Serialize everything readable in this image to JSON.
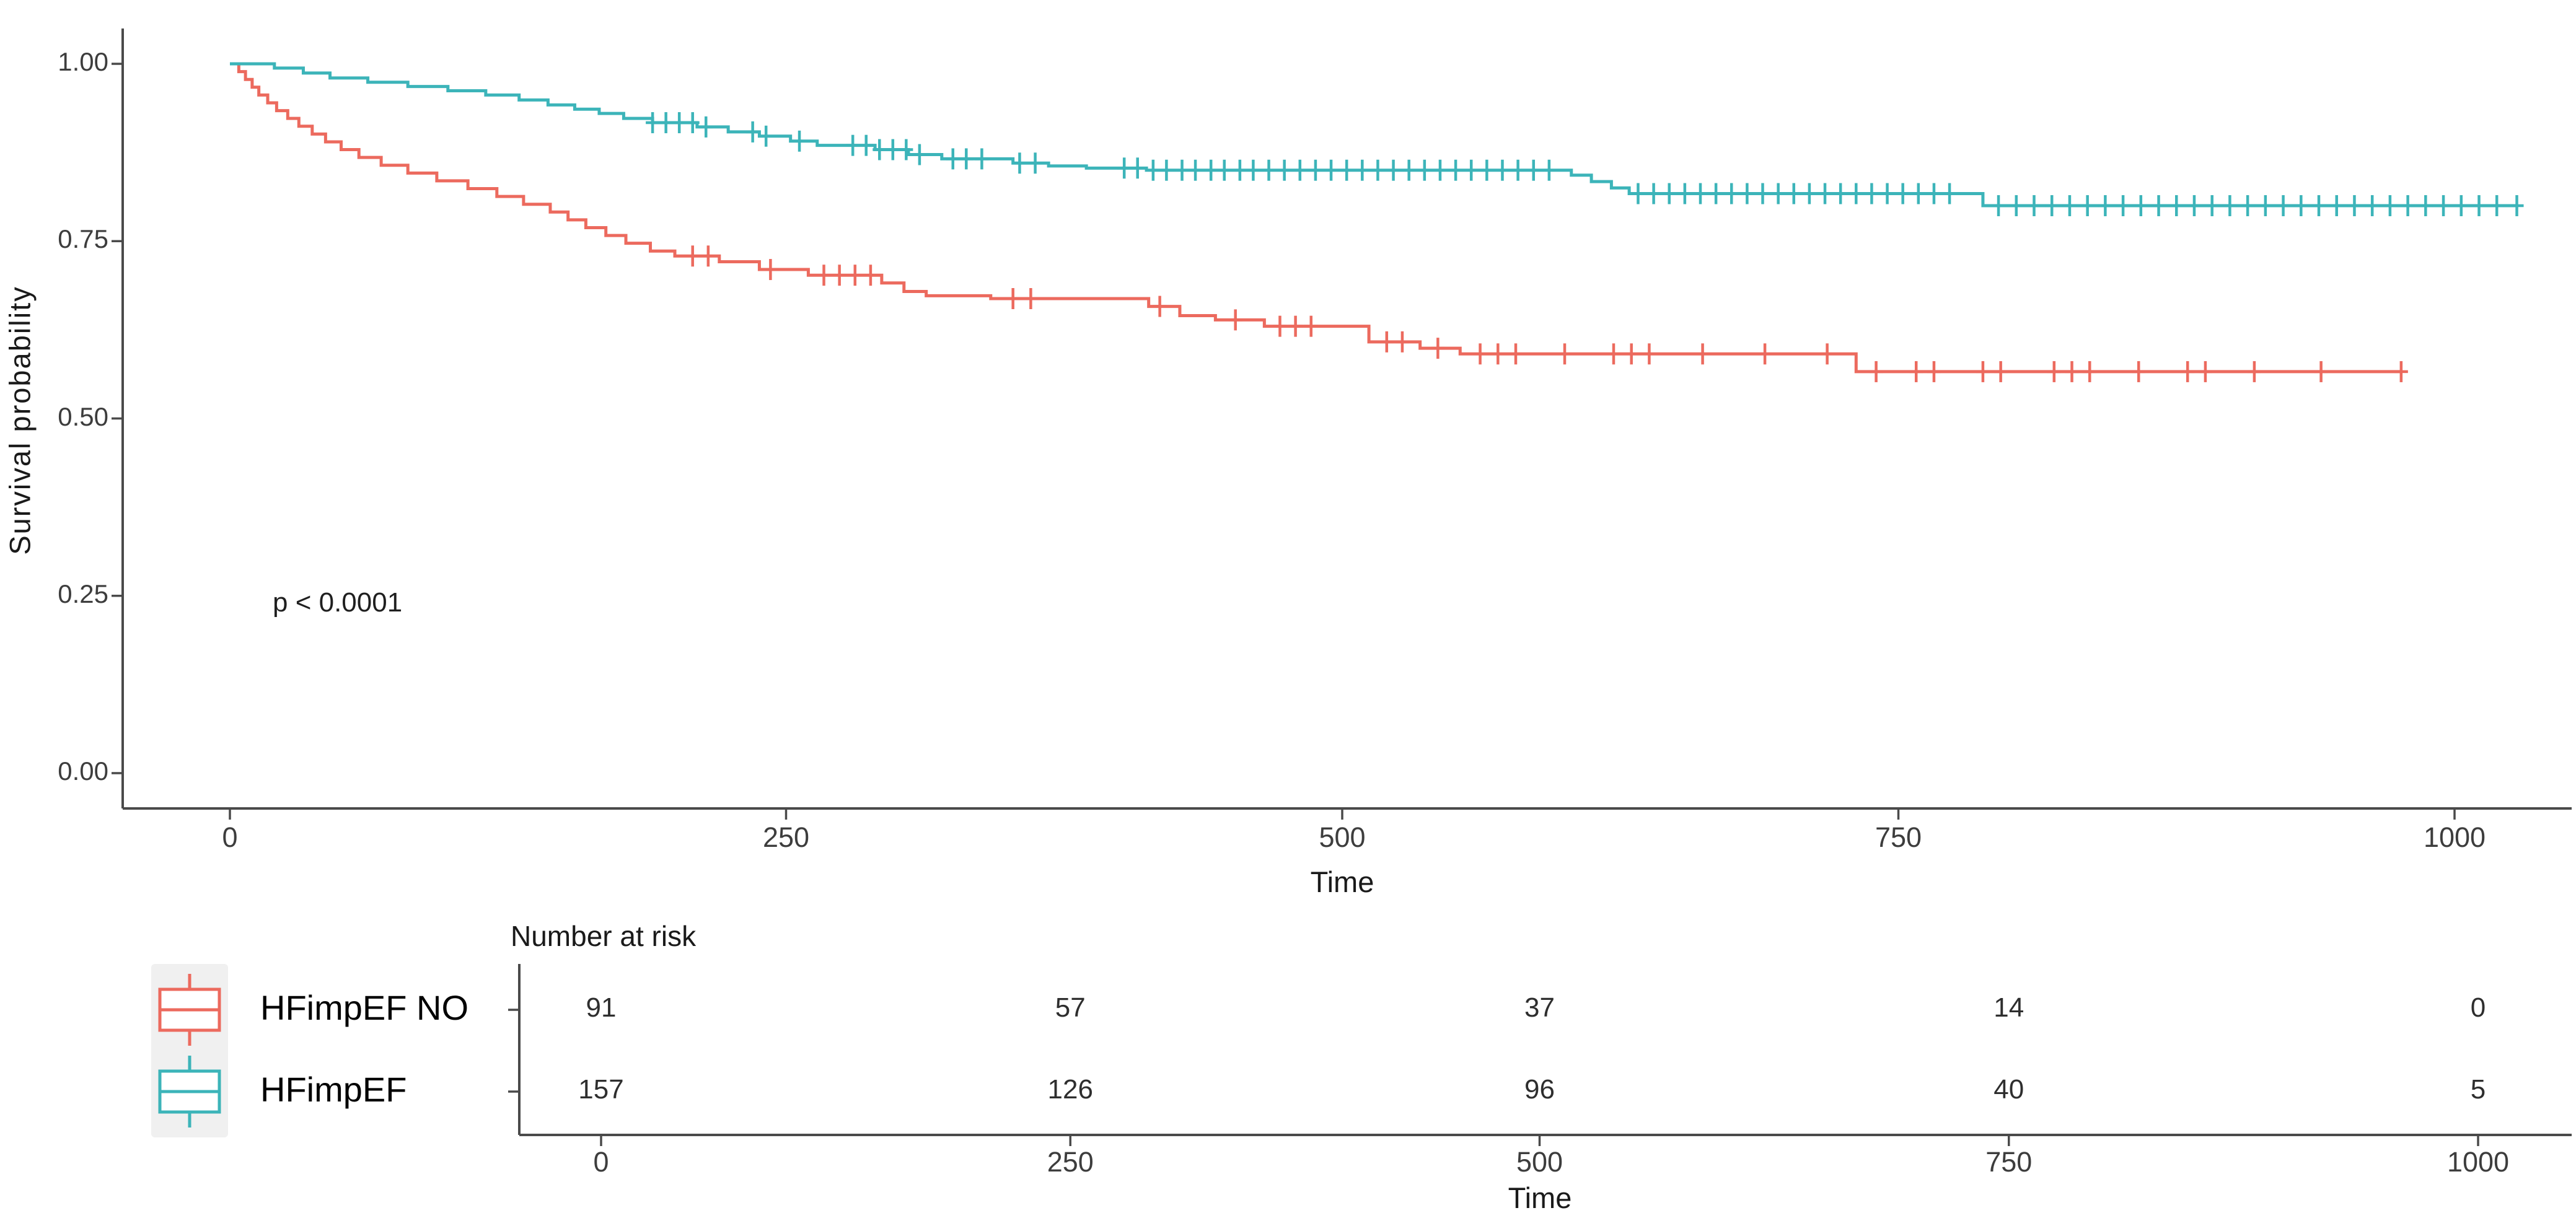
{
  "figure": {
    "background": "#ffffff",
    "axis_color": "#4a4a4a",
    "tick_label_color": "#3d3d3d",
    "legend_key_background": "#f0f0f0"
  },
  "chart_data": {
    "type": "line",
    "subtype": "kaplan-meier-step-survival",
    "title": "",
    "xlabel": "Time",
    "ylabel": "Survival probability",
    "annotation": "p < 0.0001",
    "xlim": [
      0,
      1030
    ],
    "ylim": [
      0,
      1
    ],
    "grid": false,
    "legend_position": "bottom-left",
    "x_ticks": [
      0,
      250,
      500,
      750,
      1000
    ],
    "y_ticks": [
      1.0,
      0.75,
      0.5,
      0.25,
      0.0
    ],
    "y_tick_labels": [
      "1.00",
      "0.75",
      "0.50",
      "0.25",
      "0.00"
    ],
    "series": [
      {
        "name": "HFimpEF NO",
        "color": "#ec6a5e",
        "n": 91,
        "steps": [
          [
            0,
            1.0
          ],
          [
            4,
            0.989
          ],
          [
            7,
            0.978
          ],
          [
            10,
            0.967
          ],
          [
            13,
            0.956
          ],
          [
            17,
            0.945
          ],
          [
            21,
            0.934
          ],
          [
            26,
            0.923
          ],
          [
            31,
            0.912
          ],
          [
            37,
            0.901
          ],
          [
            43,
            0.89
          ],
          [
            50,
            0.879
          ],
          [
            58,
            0.868
          ],
          [
            68,
            0.857
          ],
          [
            80,
            0.846
          ],
          [
            93,
            0.835
          ],
          [
            107,
            0.824
          ],
          [
            120,
            0.813
          ],
          [
            132,
            0.802
          ],
          [
            144,
            0.791
          ],
          [
            152,
            0.78
          ],
          [
            160,
            0.769
          ],
          [
            169,
            0.758
          ],
          [
            178,
            0.747
          ],
          [
            189,
            0.736
          ],
          [
            200,
            0.729
          ],
          [
            220,
            0.721
          ],
          [
            238,
            0.71
          ],
          [
            260,
            0.702
          ],
          [
            293,
            0.691
          ],
          [
            303,
            0.679
          ],
          [
            313,
            0.673
          ],
          [
            342,
            0.669
          ],
          [
            413,
            0.658
          ],
          [
            427,
            0.645
          ],
          [
            443,
            0.639
          ],
          [
            465,
            0.63
          ],
          [
            512,
            0.608
          ],
          [
            535,
            0.599
          ],
          [
            553,
            0.591
          ],
          [
            731,
            0.566
          ]
        ],
        "end_time": 976,
        "censor_times": [
          208,
          215,
          243,
          267,
          274,
          281,
          288,
          352,
          360,
          418,
          452,
          472,
          479,
          486,
          520,
          527,
          543,
          562,
          570,
          578,
          600,
          622,
          630,
          638,
          662,
          690,
          718,
          740,
          758,
          766,
          788,
          796,
          820,
          828,
          836,
          858,
          880,
          888,
          910,
          940,
          976
        ]
      },
      {
        "name": "HFimpEF",
        "color": "#3cb4b9",
        "n": 157,
        "steps": [
          [
            0,
            1.0
          ],
          [
            20,
            0.994
          ],
          [
            33,
            0.987
          ],
          [
            45,
            0.98
          ],
          [
            62,
            0.974
          ],
          [
            80,
            0.968
          ],
          [
            98,
            0.962
          ],
          [
            115,
            0.956
          ],
          [
            130,
            0.949
          ],
          [
            143,
            0.942
          ],
          [
            155,
            0.936
          ],
          [
            166,
            0.93
          ],
          [
            177,
            0.923
          ],
          [
            190,
            0.917
          ],
          [
            210,
            0.911
          ],
          [
            224,
            0.904
          ],
          [
            238,
            0.898
          ],
          [
            252,
            0.891
          ],
          [
            264,
            0.885
          ],
          [
            290,
            0.879
          ],
          [
            305,
            0.872
          ],
          [
            320,
            0.866
          ],
          [
            352,
            0.86
          ],
          [
            368,
            0.856
          ],
          [
            385,
            0.853
          ],
          [
            412,
            0.85
          ],
          [
            603,
            0.843
          ],
          [
            612,
            0.834
          ],
          [
            621,
            0.825
          ],
          [
            629,
            0.817
          ],
          [
            788,
            0.8
          ]
        ],
        "end_time": 1028,
        "censor_times": [
          190,
          196,
          202,
          208,
          214,
          235,
          241,
          256,
          280,
          286,
          292,
          298,
          304,
          310,
          325,
          331,
          338,
          355,
          362,
          402,
          408,
          415,
          421,
          428,
          434,
          441,
          447,
          454,
          460,
          467,
          474,
          481,
          488,
          495,
          502,
          509,
          516,
          523,
          530,
          537,
          544,
          551,
          558,
          565,
          572,
          579,
          586,
          593,
          633,
          640,
          647,
          654,
          661,
          668,
          675,
          682,
          689,
          696,
          703,
          710,
          717,
          724,
          731,
          738,
          745,
          752,
          759,
          766,
          773,
          795,
          803,
          811,
          819,
          827,
          835,
          843,
          851,
          859,
          867,
          875,
          883,
          891,
          899,
          907,
          915,
          923,
          931,
          939,
          947,
          955,
          963,
          971,
          979,
          987,
          995,
          1003,
          1011,
          1019,
          1028
        ]
      }
    ],
    "risk_table": {
      "title": "Number at risk",
      "xlabel": "Time",
      "times": [
        0,
        250,
        500,
        750,
        1000
      ],
      "rows": [
        {
          "name": "HFimpEF NO",
          "counts": [
            91,
            57,
            37,
            14,
            0
          ]
        },
        {
          "name": "HFimpEF",
          "counts": [
            157,
            126,
            96,
            40,
            5
          ]
        }
      ]
    }
  }
}
